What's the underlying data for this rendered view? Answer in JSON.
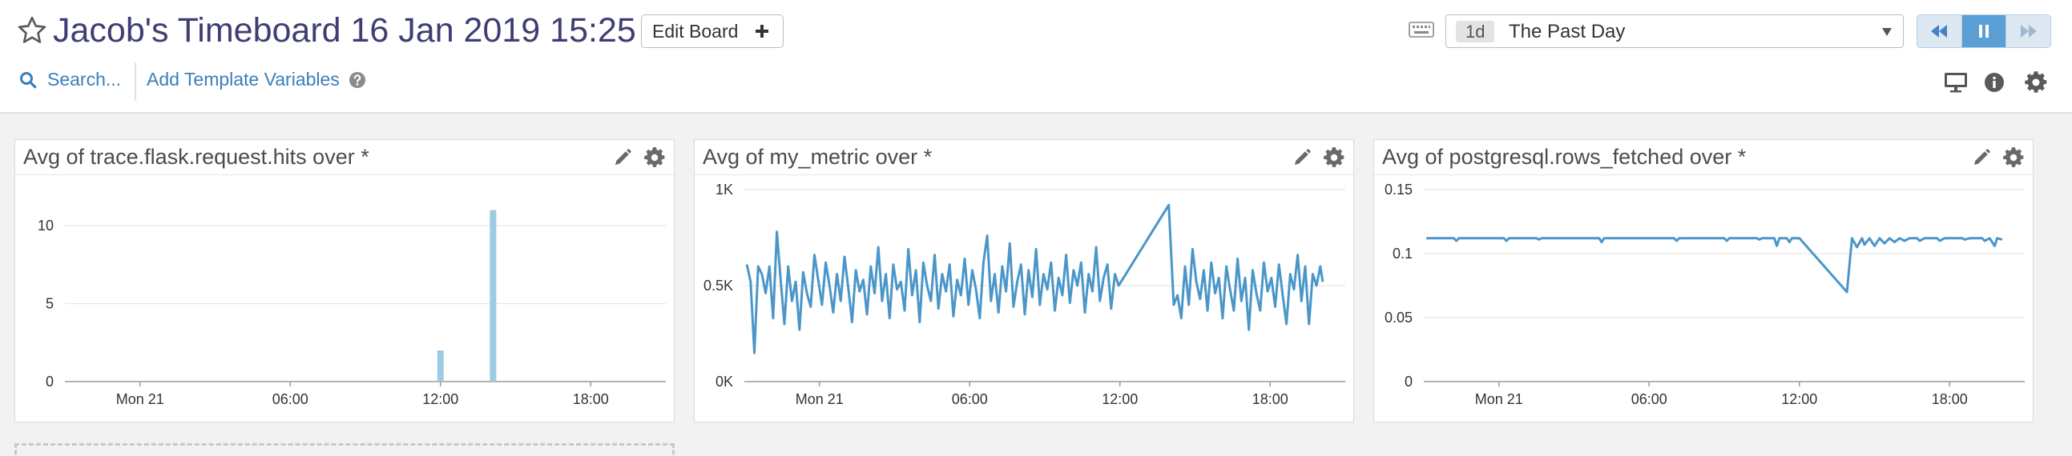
{
  "dashboard": {
    "title": "Jacob's Timeboard 16 Jan 2019 15:25",
    "edit_label": "Edit Board",
    "search_label": "Search...",
    "template_label": "Add Template Variables"
  },
  "time_range": {
    "badge": "1d",
    "label": "The Past Day"
  },
  "icons": {
    "favorite": "star-icon",
    "edit": "plus-icon",
    "keyboard": "keyboard-icon",
    "rewind": "rewind-icon",
    "pause": "pause-icon",
    "forward": "fast-forward-icon",
    "search": "search-icon",
    "help": "question-circle-icon",
    "tv": "tv-mode-icon",
    "info": "info-icon",
    "settings": "gear-icon",
    "widget_edit": "pencil-icon",
    "widget_settings": "gear-icon"
  },
  "colors": {
    "title": "#3e3e74",
    "link": "#3b7eb8",
    "series": "#4a96c9",
    "bar": "#9ecbe4",
    "active_button": "#5a9fd6"
  },
  "chart_data": [
    {
      "type": "bar",
      "title": "Avg of trace.flask.request.hits over *",
      "x_ticks": [
        "Mon 21",
        "06:00",
        "12:00",
        "18:00"
      ],
      "y_ticks": [
        "0",
        "5",
        "10"
      ],
      "ylim": [
        0,
        12
      ],
      "x_range_hours": [
        -3,
        21
      ],
      "grid": true,
      "legend": "none",
      "bars": [
        {
          "hour": 12.0,
          "value": 2
        },
        {
          "hour": 14.1,
          "value": 11
        }
      ]
    },
    {
      "type": "line",
      "title": "Avg of my_metric over *",
      "x_ticks": [
        "Mon 21",
        "06:00",
        "12:00",
        "18:00"
      ],
      "y_ticks": [
        "0K",
        "0.5K",
        "1K"
      ],
      "ylim": [
        0,
        1000
      ],
      "x_range_hours": [
        -3,
        21
      ],
      "grid": true,
      "legend": "none",
      "points": [
        [
          -2.9,
          610
        ],
        [
          -2.75,
          520
        ],
        [
          -2.6,
          150
        ],
        [
          -2.45,
          600
        ],
        [
          -2.3,
          560
        ],
        [
          -2.15,
          460
        ],
        [
          -2.0,
          600
        ],
        [
          -1.85,
          330
        ],
        [
          -1.7,
          780
        ],
        [
          -1.55,
          530
        ],
        [
          -1.4,
          300
        ],
        [
          -1.25,
          600
        ],
        [
          -1.1,
          420
        ],
        [
          -0.95,
          520
        ],
        [
          -0.8,
          270
        ],
        [
          -0.65,
          570
        ],
        [
          -0.5,
          460
        ],
        [
          -0.35,
          390
        ],
        [
          -0.2,
          660
        ],
        [
          -0.05,
          530
        ],
        [
          0.1,
          400
        ],
        [
          0.25,
          620
        ],
        [
          0.4,
          500
        ],
        [
          0.55,
          360
        ],
        [
          0.7,
          560
        ],
        [
          0.85,
          420
        ],
        [
          1.0,
          650
        ],
        [
          1.15,
          490
        ],
        [
          1.3,
          310
        ],
        [
          1.45,
          580
        ],
        [
          1.6,
          470
        ],
        [
          1.75,
          530
        ],
        [
          1.9,
          350
        ],
        [
          2.05,
          600
        ],
        [
          2.2,
          460
        ],
        [
          2.35,
          700
        ],
        [
          2.5,
          420
        ],
        [
          2.65,
          560
        ],
        [
          2.8,
          330
        ],
        [
          2.95,
          610
        ],
        [
          3.1,
          480
        ],
        [
          3.25,
          520
        ],
        [
          3.4,
          370
        ],
        [
          3.55,
          690
        ],
        [
          3.7,
          450
        ],
        [
          3.85,
          580
        ],
        [
          4.0,
          310
        ],
        [
          4.15,
          620
        ],
        [
          4.3,
          500
        ],
        [
          4.45,
          420
        ],
        [
          4.6,
          660
        ],
        [
          4.75,
          380
        ],
        [
          4.9,
          560
        ],
        [
          5.05,
          470
        ],
        [
          5.2,
          610
        ],
        [
          5.35,
          340
        ],
        [
          5.5,
          530
        ],
        [
          5.65,
          450
        ],
        [
          5.8,
          640
        ],
        [
          5.95,
          400
        ],
        [
          6.1,
          580
        ],
        [
          6.25,
          480
        ],
        [
          6.4,
          330
        ],
        [
          6.55,
          620
        ],
        [
          6.7,
          760
        ],
        [
          6.85,
          420
        ],
        [
          7.0,
          560
        ],
        [
          7.15,
          360
        ],
        [
          7.3,
          600
        ],
        [
          7.45,
          470
        ],
        [
          7.6,
          720
        ],
        [
          7.75,
          390
        ],
        [
          7.9,
          520
        ],
        [
          8.05,
          610
        ],
        [
          8.2,
          350
        ],
        [
          8.35,
          580
        ],
        [
          8.5,
          440
        ],
        [
          8.65,
          690
        ],
        [
          8.8,
          400
        ],
        [
          8.95,
          560
        ],
        [
          9.1,
          480
        ],
        [
          9.25,
          620
        ],
        [
          9.4,
          370
        ],
        [
          9.55,
          540
        ],
        [
          9.7,
          450
        ],
        [
          9.85,
          660
        ],
        [
          10.0,
          410
        ],
        [
          10.15,
          580
        ],
        [
          10.3,
          500
        ],
        [
          10.45,
          620
        ],
        [
          10.6,
          360
        ],
        [
          10.75,
          560
        ],
        [
          10.9,
          470
        ],
        [
          11.05,
          700
        ],
        [
          11.2,
          420
        ],
        [
          11.35,
          540
        ],
        [
          11.5,
          610
        ],
        [
          11.65,
          380
        ],
        [
          11.8,
          560
        ],
        [
          11.95,
          500
        ],
        [
          13.95,
          920
        ],
        [
          14.15,
          400
        ],
        [
          14.3,
          450
        ],
        [
          14.45,
          330
        ],
        [
          14.6,
          600
        ],
        [
          14.75,
          400
        ],
        [
          14.9,
          690
        ],
        [
          15.05,
          520
        ],
        [
          15.2,
          430
        ],
        [
          15.35,
          580
        ],
        [
          15.5,
          370
        ],
        [
          15.65,
          620
        ],
        [
          15.8,
          460
        ],
        [
          15.95,
          540
        ],
        [
          16.1,
          330
        ],
        [
          16.25,
          600
        ],
        [
          16.4,
          480
        ],
        [
          16.55,
          370
        ],
        [
          16.7,
          640
        ],
        [
          16.85,
          420
        ],
        [
          17.0,
          540
        ],
        [
          17.15,
          270
        ],
        [
          17.3,
          580
        ],
        [
          17.45,
          460
        ],
        [
          17.6,
          370
        ],
        [
          17.75,
          620
        ],
        [
          17.9,
          470
        ],
        [
          18.05,
          540
        ],
        [
          18.2,
          390
        ],
        [
          18.35,
          610
        ],
        [
          18.5,
          450
        ],
        [
          18.65,
          300
        ],
        [
          18.8,
          560
        ],
        [
          18.95,
          480
        ],
        [
          19.1,
          660
        ],
        [
          19.25,
          420
        ],
        [
          19.4,
          600
        ],
        [
          19.55,
          300
        ],
        [
          19.7,
          560
        ],
        [
          19.85,
          500
        ],
        [
          20.0,
          600
        ],
        [
          20.1,
          520
        ]
      ]
    },
    {
      "type": "line",
      "title": "Avg of postgresql.rows_fetched over *",
      "x_ticks": [
        "Mon 21",
        "06:00",
        "12:00",
        "18:00"
      ],
      "y_ticks": [
        "0",
        "0.05",
        "0.1",
        "0.15"
      ],
      "ylim": [
        0,
        0.15
      ],
      "x_range_hours": [
        -3,
        21
      ],
      "grid": true,
      "legend": "none",
      "points": [
        [
          -2.9,
          0.112
        ],
        [
          -1.8,
          0.112
        ],
        [
          -1.7,
          0.11
        ],
        [
          -1.6,
          0.112
        ],
        [
          0.2,
          0.112
        ],
        [
          0.3,
          0.11
        ],
        [
          0.4,
          0.112
        ],
        [
          1.5,
          0.112
        ],
        [
          1.6,
          0.111
        ],
        [
          1.7,
          0.112
        ],
        [
          4.0,
          0.112
        ],
        [
          4.1,
          0.109
        ],
        [
          4.2,
          0.112
        ],
        [
          7.0,
          0.112
        ],
        [
          7.1,
          0.11
        ],
        [
          7.2,
          0.112
        ],
        [
          9.0,
          0.112
        ],
        [
          9.1,
          0.11
        ],
        [
          9.2,
          0.112
        ],
        [
          10.3,
          0.112
        ],
        [
          10.4,
          0.111
        ],
        [
          10.5,
          0.112
        ],
        [
          11.0,
          0.112
        ],
        [
          11.1,
          0.106
        ],
        [
          11.2,
          0.112
        ],
        [
          11.5,
          0.112
        ],
        [
          11.6,
          0.109
        ],
        [
          11.7,
          0.112
        ],
        [
          12.0,
          0.112
        ],
        [
          13.9,
          0.07
        ],
        [
          14.1,
          0.112
        ],
        [
          14.3,
          0.105
        ],
        [
          14.5,
          0.112
        ],
        [
          14.6,
          0.107
        ],
        [
          14.8,
          0.112
        ],
        [
          15.0,
          0.106
        ],
        [
          15.2,
          0.112
        ],
        [
          15.4,
          0.108
        ],
        [
          15.6,
          0.112
        ],
        [
          15.8,
          0.109
        ],
        [
          16.0,
          0.112
        ],
        [
          16.2,
          0.11
        ],
        [
          16.4,
          0.112
        ],
        [
          16.7,
          0.112
        ],
        [
          16.8,
          0.11
        ],
        [
          17.0,
          0.112
        ],
        [
          17.5,
          0.112
        ],
        [
          17.6,
          0.11
        ],
        [
          17.8,
          0.112
        ],
        [
          18.5,
          0.112
        ],
        [
          18.6,
          0.111
        ],
        [
          18.8,
          0.112
        ],
        [
          19.3,
          0.112
        ],
        [
          19.4,
          0.11
        ],
        [
          19.6,
          0.112
        ],
        [
          19.8,
          0.106
        ],
        [
          19.9,
          0.112
        ],
        [
          20.1,
          0.111
        ]
      ]
    }
  ]
}
